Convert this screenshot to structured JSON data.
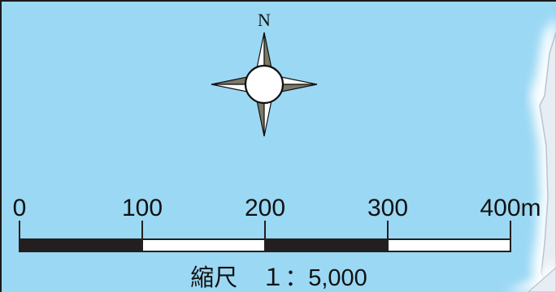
{
  "colors": {
    "water": "#9bd8f4",
    "border": "#1a1a1a",
    "scale_dark": "#231f20",
    "scale_light": "#ffffff",
    "compass_fill": "#7a7a68",
    "coast_glow": "#ffffff",
    "land": "#e6edf3"
  },
  "compass": {
    "north_label": "N",
    "icon": "compass-rose-icon"
  },
  "scale_bar": {
    "tick_labels": [
      "0",
      "100",
      "200",
      "300",
      "400m"
    ],
    "segments": 4
  },
  "scale_text": "縮尺　１：5,000"
}
